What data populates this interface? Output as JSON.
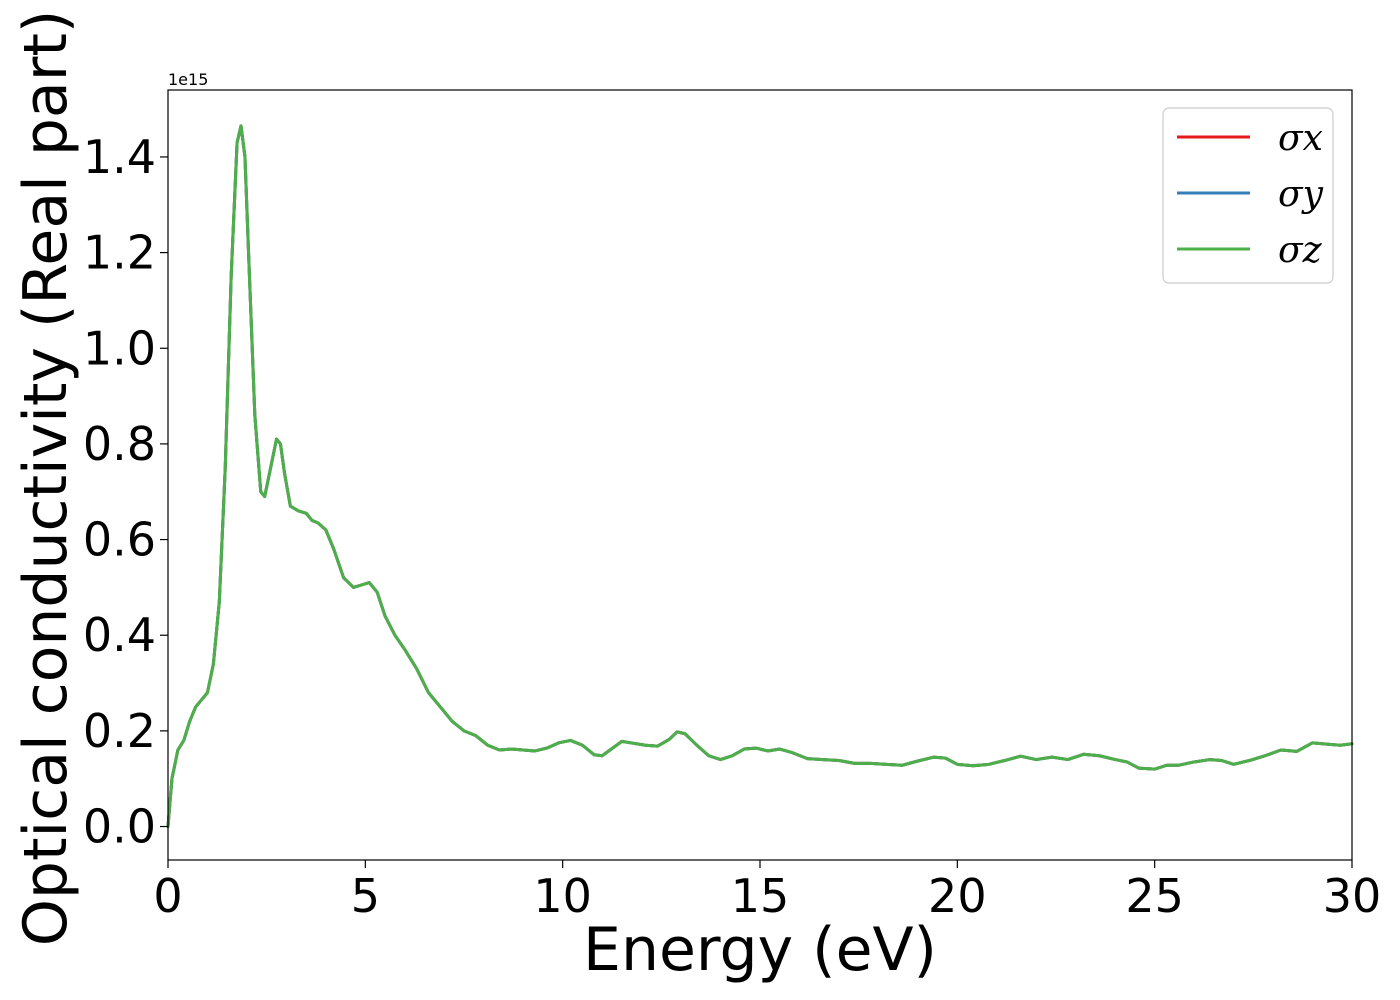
{
  "chart_data": {
    "type": "line",
    "title": "",
    "xlabel": "Energy (eV)",
    "ylabel": "Optical conductivity (Real part)",
    "y_offset_label": "1e15",
    "xlim": [
      0,
      30
    ],
    "ylim": [
      -0.07,
      1.54
    ],
    "x_ticks": [
      0,
      5,
      10,
      15,
      20,
      25,
      30
    ],
    "x_tick_labels": [
      "0",
      "5",
      "10",
      "15",
      "20",
      "25",
      "30"
    ],
    "y_ticks": [
      0.0,
      0.2,
      0.4,
      0.6,
      0.8,
      1.0,
      1.2,
      1.4
    ],
    "y_tick_labels": [
      "0.0",
      "0.2",
      "0.4",
      "0.6",
      "0.8",
      "1.0",
      "1.2",
      "1.4"
    ],
    "grid": false,
    "legend_position": "top-right",
    "x": [
      0,
      0.1,
      0.25,
      0.4,
      0.55,
      0.7,
      0.85,
      1.0,
      1.15,
      1.3,
      1.45,
      1.6,
      1.75,
      1.85,
      1.95,
      2.05,
      2.2,
      2.35,
      2.45,
      2.6,
      2.75,
      2.85,
      2.95,
      3.1,
      3.3,
      3.5,
      3.65,
      3.8,
      4.0,
      4.2,
      4.45,
      4.7,
      4.9,
      5.1,
      5.3,
      5.5,
      5.75,
      6.0,
      6.3,
      6.6,
      6.9,
      7.2,
      7.5,
      7.8,
      8.1,
      8.4,
      8.7,
      9.0,
      9.3,
      9.6,
      9.9,
      10.2,
      10.5,
      10.8,
      11.0,
      11.2,
      11.5,
      11.8,
      12.1,
      12.4,
      12.7,
      12.9,
      13.1,
      13.4,
      13.7,
      14.0,
      14.3,
      14.6,
      14.9,
      15.2,
      15.5,
      15.8,
      16.2,
      16.6,
      17.0,
      17.4,
      17.8,
      18.2,
      18.6,
      19.0,
      19.4,
      19.7,
      20.0,
      20.4,
      20.8,
      21.2,
      21.6,
      22.0,
      22.4,
      22.8,
      23.2,
      23.6,
      24.0,
      24.3,
      24.6,
      25.0,
      25.3,
      25.6,
      26.0,
      26.4,
      26.7,
      27.0,
      27.4,
      27.8,
      28.2,
      28.6,
      29.0,
      29.4,
      29.7,
      30.0
    ],
    "series": [
      {
        "name": "σx",
        "color": "#e41a1c",
        "values": [
          0.0,
          0.1,
          0.16,
          0.18,
          0.22,
          0.25,
          0.265,
          0.28,
          0.34,
          0.47,
          0.75,
          1.15,
          1.43,
          1.465,
          1.4,
          1.18,
          0.86,
          0.7,
          0.69,
          0.75,
          0.81,
          0.8,
          0.74,
          0.67,
          0.66,
          0.655,
          0.64,
          0.635,
          0.62,
          0.58,
          0.52,
          0.5,
          0.505,
          0.51,
          0.49,
          0.44,
          0.4,
          0.37,
          0.33,
          0.28,
          0.25,
          0.22,
          0.2,
          0.19,
          0.17,
          0.16,
          0.162,
          0.16,
          0.158,
          0.164,
          0.175,
          0.18,
          0.17,
          0.15,
          0.148,
          0.16,
          0.178,
          0.174,
          0.17,
          0.168,
          0.182,
          0.198,
          0.194,
          0.17,
          0.148,
          0.14,
          0.148,
          0.162,
          0.164,
          0.158,
          0.162,
          0.155,
          0.142,
          0.14,
          0.138,
          0.132,
          0.132,
          0.13,
          0.128,
          0.137,
          0.145,
          0.143,
          0.13,
          0.127,
          0.13,
          0.138,
          0.147,
          0.14,
          0.145,
          0.14,
          0.151,
          0.148,
          0.14,
          0.135,
          0.122,
          0.12,
          0.128,
          0.128,
          0.135,
          0.14,
          0.138,
          0.13,
          0.138,
          0.148,
          0.16,
          0.157,
          0.175,
          0.172,
          0.17,
          0.173
        ]
      },
      {
        "name": "σy",
        "color": "#377eb8",
        "values": [
          0.0,
          0.1,
          0.16,
          0.18,
          0.22,
          0.25,
          0.265,
          0.28,
          0.34,
          0.47,
          0.75,
          1.15,
          1.43,
          1.465,
          1.4,
          1.18,
          0.86,
          0.7,
          0.69,
          0.75,
          0.81,
          0.8,
          0.74,
          0.67,
          0.66,
          0.655,
          0.64,
          0.635,
          0.62,
          0.58,
          0.52,
          0.5,
          0.505,
          0.51,
          0.49,
          0.44,
          0.4,
          0.37,
          0.33,
          0.28,
          0.25,
          0.22,
          0.2,
          0.19,
          0.17,
          0.16,
          0.162,
          0.16,
          0.158,
          0.164,
          0.175,
          0.18,
          0.17,
          0.15,
          0.148,
          0.16,
          0.178,
          0.174,
          0.17,
          0.168,
          0.182,
          0.198,
          0.194,
          0.17,
          0.148,
          0.14,
          0.148,
          0.162,
          0.164,
          0.158,
          0.162,
          0.155,
          0.142,
          0.14,
          0.138,
          0.132,
          0.132,
          0.13,
          0.128,
          0.137,
          0.145,
          0.143,
          0.13,
          0.127,
          0.13,
          0.138,
          0.147,
          0.14,
          0.145,
          0.14,
          0.151,
          0.148,
          0.14,
          0.135,
          0.122,
          0.12,
          0.128,
          0.128,
          0.135,
          0.14,
          0.138,
          0.13,
          0.138,
          0.148,
          0.16,
          0.157,
          0.175,
          0.172,
          0.17,
          0.173
        ]
      },
      {
        "name": "σz",
        "color": "#4daf4a",
        "values": [
          0.0,
          0.1,
          0.16,
          0.18,
          0.22,
          0.25,
          0.265,
          0.28,
          0.34,
          0.47,
          0.75,
          1.15,
          1.43,
          1.465,
          1.4,
          1.18,
          0.86,
          0.7,
          0.69,
          0.75,
          0.81,
          0.8,
          0.74,
          0.67,
          0.66,
          0.655,
          0.64,
          0.635,
          0.62,
          0.58,
          0.52,
          0.5,
          0.505,
          0.51,
          0.49,
          0.44,
          0.4,
          0.37,
          0.33,
          0.28,
          0.25,
          0.22,
          0.2,
          0.19,
          0.17,
          0.16,
          0.162,
          0.16,
          0.158,
          0.164,
          0.175,
          0.18,
          0.17,
          0.15,
          0.148,
          0.16,
          0.178,
          0.174,
          0.17,
          0.168,
          0.182,
          0.198,
          0.194,
          0.17,
          0.148,
          0.14,
          0.148,
          0.162,
          0.164,
          0.158,
          0.162,
          0.155,
          0.142,
          0.14,
          0.138,
          0.132,
          0.132,
          0.13,
          0.128,
          0.137,
          0.145,
          0.143,
          0.13,
          0.127,
          0.13,
          0.138,
          0.147,
          0.14,
          0.145,
          0.14,
          0.151,
          0.148,
          0.14,
          0.135,
          0.122,
          0.12,
          0.128,
          0.128,
          0.135,
          0.14,
          0.138,
          0.13,
          0.138,
          0.148,
          0.16,
          0.157,
          0.175,
          0.172,
          0.17,
          0.173
        ]
      }
    ]
  }
}
